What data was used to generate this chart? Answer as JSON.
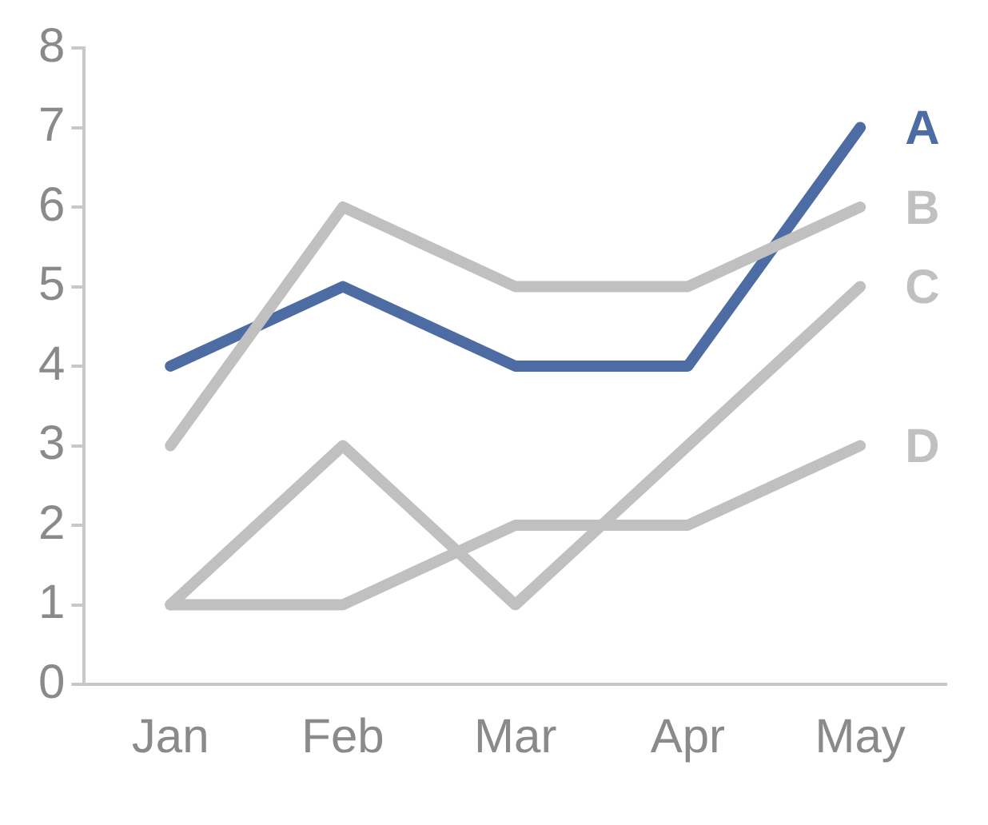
{
  "chart_data": {
    "type": "line",
    "categories": [
      "Jan",
      "Feb",
      "Mar",
      "Apr",
      "May"
    ],
    "series": [
      {
        "name": "B",
        "color": "#c0c0c0",
        "values": [
          3,
          6,
          5,
          5,
          6
        ]
      },
      {
        "name": "C",
        "color": "#c0c0c0",
        "values": [
          1,
          3,
          1,
          3,
          5
        ]
      },
      {
        "name": "D",
        "color": "#c0c0c0",
        "values": [
          1,
          1,
          2,
          2,
          3
        ]
      },
      {
        "name": "A",
        "color": "#4d6ca3",
        "values": [
          4,
          5,
          4,
          4,
          7
        ]
      }
    ],
    "ylim": [
      0,
      8
    ],
    "yticks": [
      0,
      1,
      2,
      3,
      4,
      5,
      6,
      7,
      8
    ],
    "marker": "none"
  }
}
